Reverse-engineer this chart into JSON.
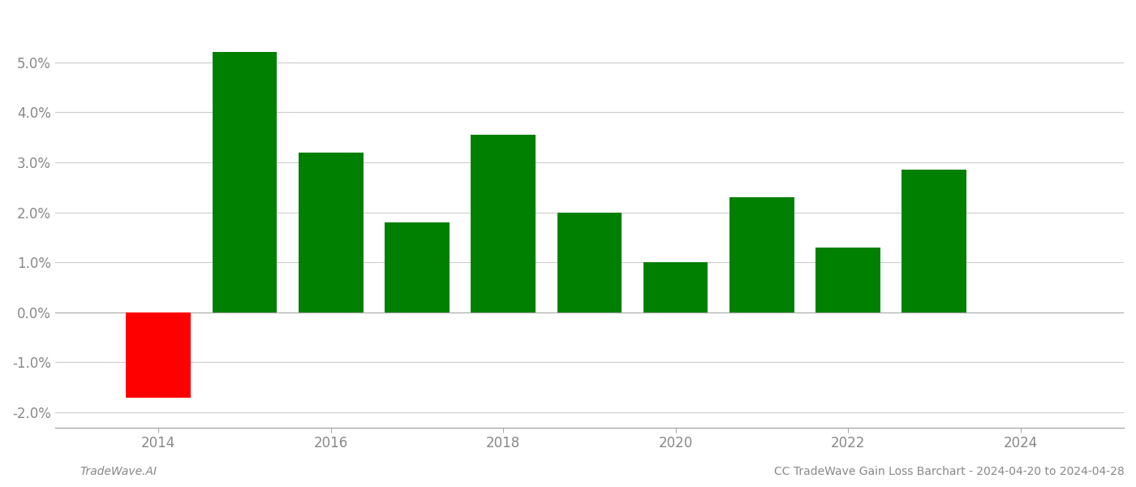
{
  "years": [
    2014,
    2015,
    2016,
    2017,
    2018,
    2019,
    2020,
    2021,
    2022,
    2023
  ],
  "values": [
    -0.017,
    0.052,
    0.032,
    0.018,
    0.0355,
    0.02,
    0.01,
    0.023,
    0.013,
    0.0285
  ],
  "colors": [
    "#ff0000",
    "#008000",
    "#008000",
    "#008000",
    "#008000",
    "#008000",
    "#008000",
    "#008000",
    "#008000",
    "#008000"
  ],
  "bar_width": 0.75,
  "xlim_left": 2012.8,
  "xlim_right": 2025.2,
  "ylim": [
    -0.023,
    0.06
  ],
  "yticks": [
    -0.02,
    -0.01,
    0.0,
    0.01,
    0.02,
    0.03,
    0.04,
    0.05
  ],
  "xticks": [
    2014,
    2016,
    2018,
    2020,
    2022,
    2024
  ],
  "footer_left": "TradeWave.AI",
  "footer_right": "CC TradeWave Gain Loss Barchart - 2024-04-20 to 2024-04-28",
  "background_color": "#ffffff",
  "grid_color": "#cccccc",
  "axis_color": "#aaaaaa",
  "tick_label_color": "#888888",
  "footer_color": "#888888",
  "tick_fontsize": 12,
  "footer_fontsize": 10
}
